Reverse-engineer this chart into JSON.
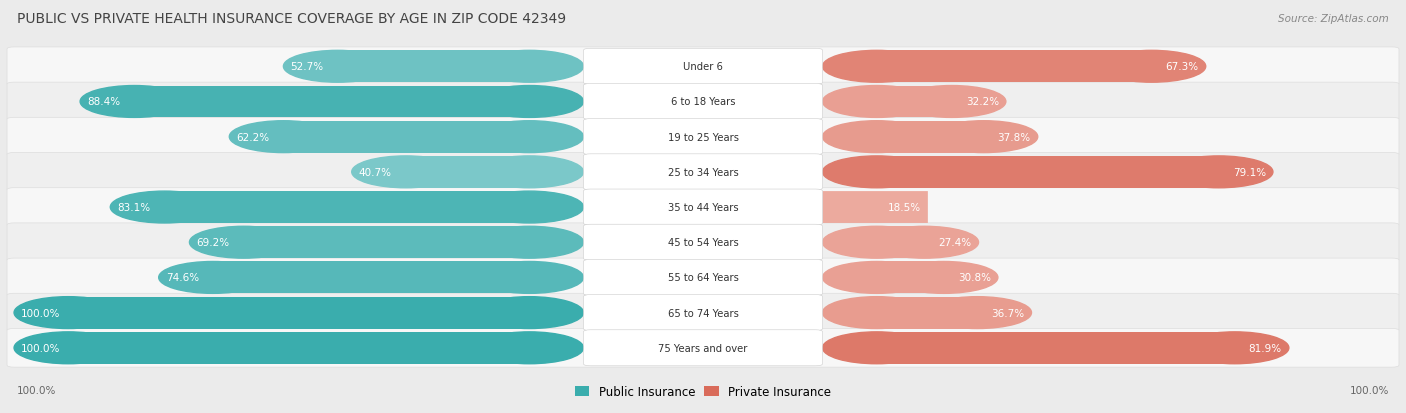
{
  "title": "PUBLIC VS PRIVATE HEALTH INSURANCE COVERAGE BY AGE IN ZIP CODE 42349",
  "source": "Source: ZipAtlas.com",
  "categories": [
    "Under 6",
    "6 to 18 Years",
    "19 to 25 Years",
    "25 to 34 Years",
    "35 to 44 Years",
    "45 to 54 Years",
    "55 to 64 Years",
    "65 to 74 Years",
    "75 Years and over"
  ],
  "public_values": [
    52.7,
    88.4,
    62.2,
    40.7,
    83.1,
    69.2,
    74.6,
    100.0,
    100.0
  ],
  "private_values": [
    67.3,
    32.2,
    37.8,
    79.1,
    18.5,
    27.4,
    30.8,
    36.7,
    81.9
  ],
  "public_color_high": "#3AADAD",
  "public_color_low": "#A8DADC",
  "private_color_high": "#D96B5A",
  "private_color_low": "#F0B8AE",
  "bg_color": "#EBEBEB",
  "row_bg_color": "#F7F7F7",
  "row_alt_bg_color": "#EEEEEE",
  "title_color": "#444444",
  "label_color": "#444444",
  "value_color_inside": "#FFFFFF",
  "value_color_outside": "#555555",
  "max_value": 100.0,
  "figsize": [
    14.06,
    4.14
  ]
}
